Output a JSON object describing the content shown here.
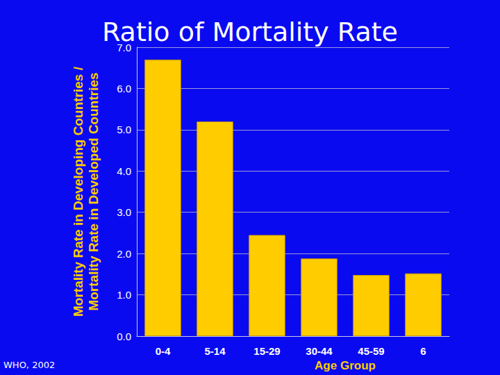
{
  "chart_data": {
    "type": "bar",
    "title": "Ratio of Mortality Rate",
    "x_label": "Age Group",
    "y_label": "Mortality Rate in Developing Countries /\nMortality Rate in Developed Countries",
    "annotation": "WHO, 2002",
    "categories": [
      "0-4",
      "5-14",
      "15-29",
      "30-44",
      "45-59",
      "6"
    ],
    "values": [
      6.7,
      5.2,
      2.45,
      1.88,
      1.48,
      1.52
    ],
    "color": "#ffcc00",
    "ylim": [
      0,
      7
    ],
    "yticks": [
      {
        "value": 0,
        "label": "0.0"
      },
      {
        "value": 1,
        "label": "1.0"
      },
      {
        "value": 2,
        "label": "2.0"
      },
      {
        "value": 3,
        "label": "3.0"
      },
      {
        "value": 4,
        "label": "4.0"
      },
      {
        "value": 5,
        "label": "5.0"
      },
      {
        "value": 6,
        "label": "6.0"
      },
      {
        "value": 7,
        "label": "7.0"
      }
    ],
    "grid": true
  }
}
